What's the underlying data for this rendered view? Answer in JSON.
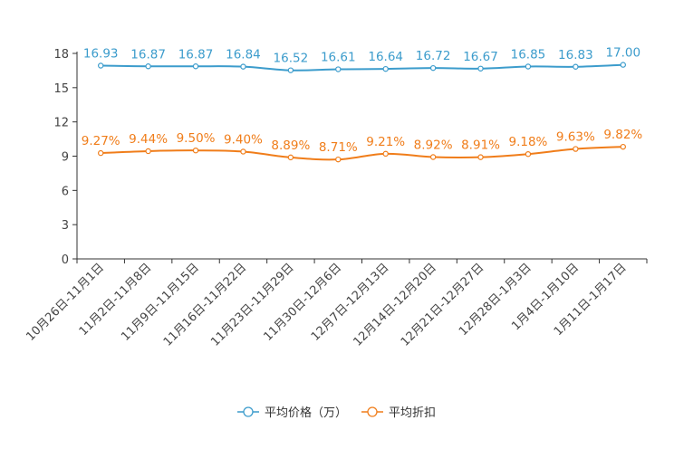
{
  "chart_data": {
    "type": "line",
    "ylim": [
      0,
      18
    ],
    "yticks": [
      0,
      3,
      6,
      9,
      12,
      15,
      18
    ],
    "categories": [
      "10月26日-11月1日",
      "11月2日-11月8日",
      "11月9日-11月15日",
      "11月16日-11月22日",
      "11月23日-11月29日",
      "11月30日-12月6日",
      "12月7日-12月13日",
      "12月14日-12月20日",
      "12月21日-12月27日",
      "12月28日-1月3日",
      "1月4日-1月10日",
      "1月11日-1月17日"
    ],
    "series": [
      {
        "name": "平均价格（万）",
        "color": "#3c9ccc",
        "values": [
          16.93,
          16.87,
          16.87,
          16.84,
          16.52,
          16.61,
          16.64,
          16.72,
          16.67,
          16.85,
          16.83,
          17.0
        ],
        "labels": [
          "16.93",
          "16.87",
          "16.87",
          "16.84",
          "16.52",
          "16.61",
          "16.64",
          "16.72",
          "16.67",
          "16.85",
          "16.83",
          "17.00"
        ]
      },
      {
        "name": "平均折扣",
        "color": "#f07d1a",
        "values": [
          9.27,
          9.44,
          9.5,
          9.4,
          8.89,
          8.71,
          9.21,
          8.92,
          8.91,
          9.18,
          9.63,
          9.82
        ],
        "labels": [
          "9.27%",
          "9.44%",
          "9.50%",
          "9.40%",
          "8.89%",
          "8.71%",
          "9.21%",
          "8.92%",
          "8.91%",
          "9.18%",
          "9.63%",
          "9.82%"
        ]
      }
    ],
    "legend_position": "bottom-center"
  }
}
